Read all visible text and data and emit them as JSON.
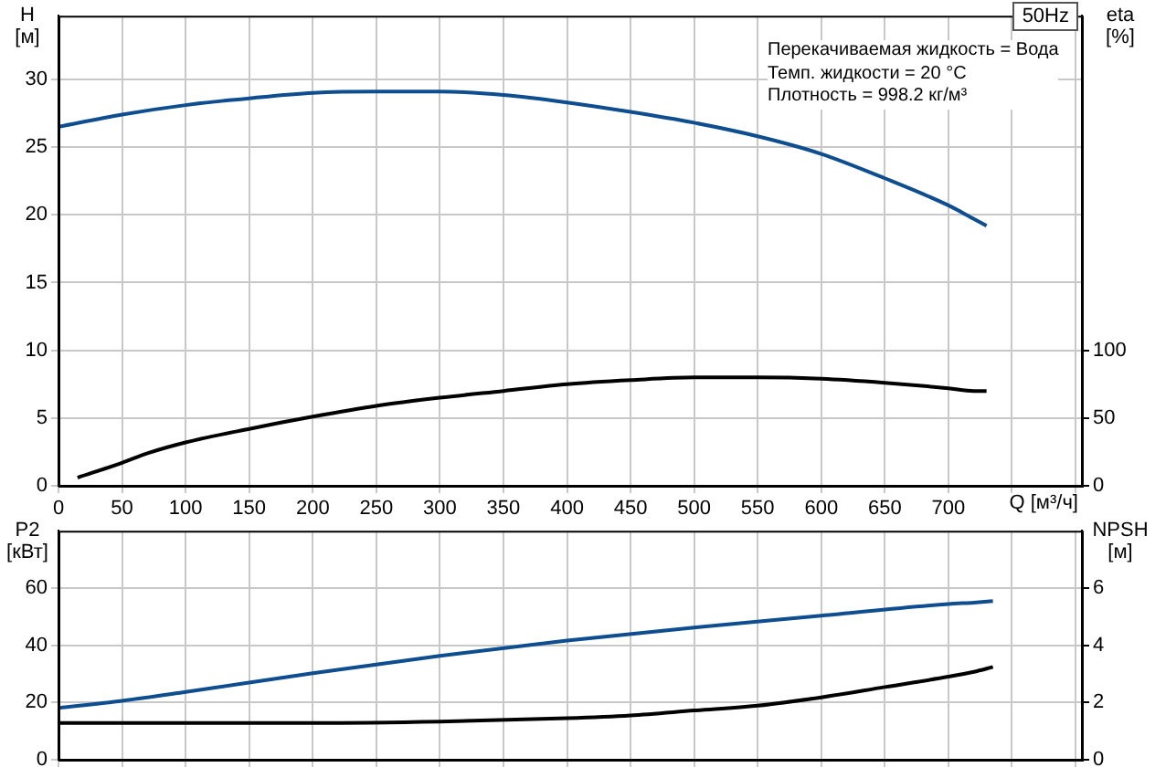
{
  "chart_data": [
    {
      "type": "line",
      "title": "50Hz",
      "annotations": [
        "Перекачиваемая жидкость = Вода",
        "Темп. жидкости = 20 °C",
        "Плотность = 998.2 кг/м³"
      ],
      "xlabel": "Q [м³/ч]",
      "ylabel": "H [м]",
      "y2label": "eta [%]",
      "xlim": [
        0,
        805
      ],
      "xticks": [
        0,
        50,
        100,
        150,
        200,
        250,
        300,
        350,
        400,
        450,
        500,
        550,
        600,
        650,
        700,
        {
          "value": 750,
          "label": null
        },
        {
          "value": 800,
          "label": null
        }
      ],
      "ylim": [
        0,
        34.7
      ],
      "yticks": [
        0,
        5,
        10,
        15,
        20,
        25,
        30
      ],
      "y2lim": [
        0,
        347
      ],
      "y2ticks": [
        0,
        50,
        100
      ],
      "grid": true,
      "legend": false,
      "marker": "none",
      "line_style": "solid",
      "series": [
        {
          "color": "#0e4d8f",
          "x": [
            0,
            50,
            100,
            150,
            200,
            250,
            300,
            350,
            400,
            450,
            500,
            550,
            600,
            650,
            700,
            720,
            730
          ],
          "values": [
            26.5,
            27.4,
            28.1,
            28.6,
            29.0,
            29.1,
            29.1,
            28.85,
            28.3,
            27.6,
            26.8,
            25.8,
            24.5,
            22.7,
            20.7,
            19.7,
            19.2
          ]
        },
        {
          "color": "#000000",
          "axis": "y2",
          "x": [
            15,
            50,
            70,
            100,
            150,
            200,
            250,
            300,
            350,
            400,
            450,
            500,
            550,
            600,
            650,
            700,
            720,
            730
          ],
          "values": [
            6,
            17,
            24,
            32,
            42,
            51,
            59,
            65,
            70,
            75,
            78,
            80,
            80,
            79,
            76,
            72,
            70,
            70
          ]
        }
      ]
    },
    {
      "type": "line",
      "ylabel": "P2 [кВт]",
      "y2label": "NPSH [м]",
      "xlim": [
        0,
        805
      ],
      "xticks": [
        0,
        50,
        100,
        150,
        200,
        250,
        300,
        350,
        400,
        450,
        500,
        550,
        600,
        650,
        700,
        750,
        800
      ],
      "ylim": [
        0,
        80
      ],
      "yticks": [
        0,
        20,
        40,
        60
      ],
      "y2lim": [
        0,
        8
      ],
      "y2ticks": [
        0,
        2,
        4,
        6
      ],
      "grid": true,
      "legend": false,
      "marker": "none",
      "line_style": "solid",
      "tick_labels": "y",
      "series": [
        {
          "color": "#0e4d8f",
          "x": [
            0,
            50,
            100,
            200,
            300,
            400,
            500,
            600,
            700,
            720,
            735
          ],
          "values": [
            18.1,
            20.6,
            23.7,
            30.2,
            36.3,
            41.6,
            46.2,
            50.3,
            54.4,
            54.9,
            55.4
          ]
        },
        {
          "color": "#000000",
          "axis": "y2",
          "x": [
            0,
            100,
            200,
            300,
            400,
            450,
            500,
            550,
            600,
            650,
            700,
            720,
            735
          ],
          "values": [
            1.28,
            1.28,
            1.28,
            1.33,
            1.45,
            1.55,
            1.72,
            1.89,
            2.18,
            2.54,
            2.9,
            3.07,
            3.24
          ]
        }
      ]
    }
  ]
}
